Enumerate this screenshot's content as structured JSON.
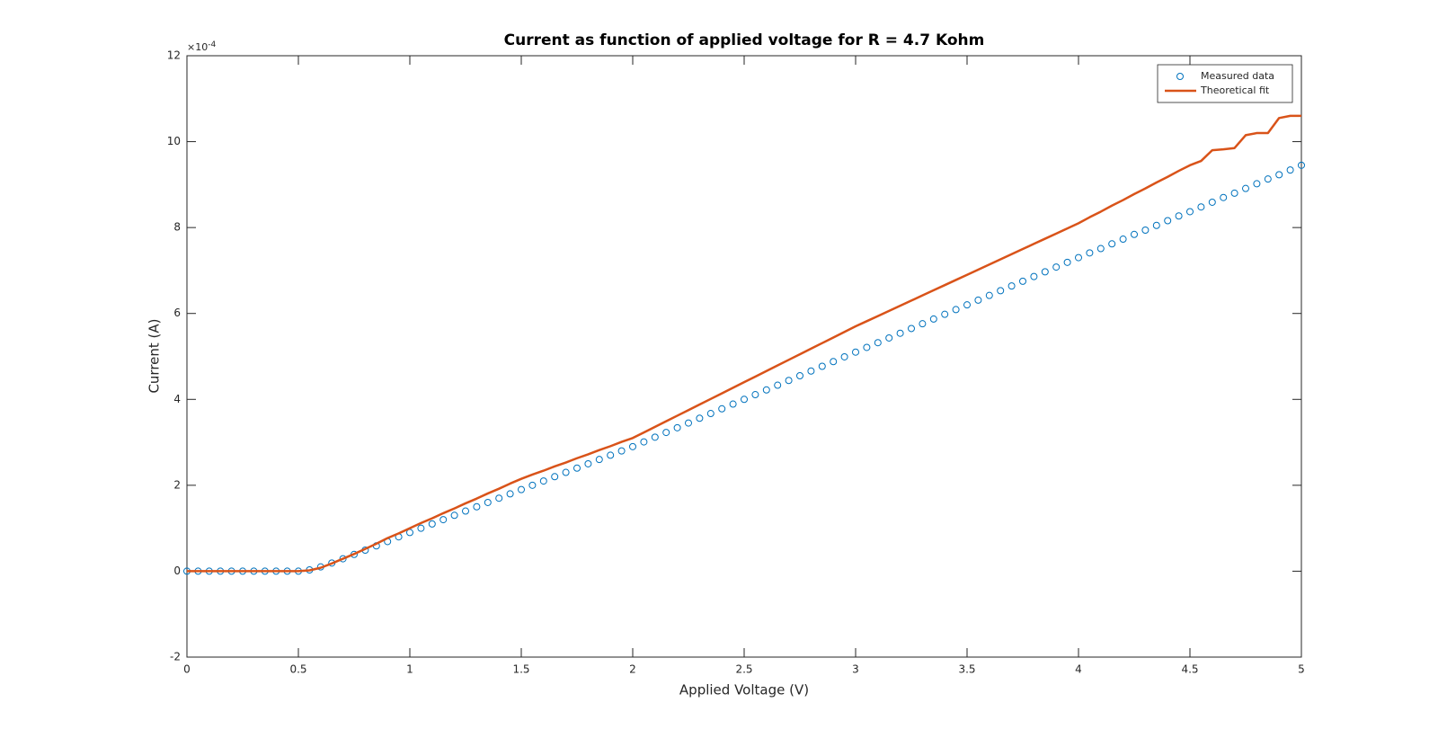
{
  "chart_data": {
    "type": "scatter-line",
    "title": "Current as function of applied voltage for R = 4.7 Kohm",
    "x_label": "Applied Voltage (V)",
    "y_label": "Current (A)",
    "y_exponent_base": "×10",
    "y_exponent": "-4",
    "x": [
      0,
      0.05,
      0.1,
      0.15,
      0.2,
      0.25,
      0.3,
      0.35,
      0.4,
      0.45,
      0.5,
      0.55,
      0.6,
      0.65,
      0.7,
      0.75,
      0.8,
      0.85,
      0.9,
      0.95,
      1,
      1.05,
      1.1,
      1.15,
      1.2,
      1.25,
      1.3,
      1.35,
      1.4,
      1.45,
      1.5,
      1.55,
      1.6,
      1.65,
      1.7,
      1.75,
      1.8,
      1.85,
      1.9,
      1.95,
      2,
      2.05,
      2.1,
      2.15,
      2.2,
      2.25,
      2.3,
      2.35,
      2.4,
      2.45,
      2.5,
      2.55,
      2.6,
      2.65,
      2.7,
      2.75,
      2.8,
      2.85,
      2.9,
      2.95,
      3,
      3.05,
      3.1,
      3.15,
      3.2,
      3.25,
      3.3,
      3.35,
      3.4,
      3.45,
      3.5,
      3.55,
      3.6,
      3.65,
      3.7,
      3.75,
      3.8,
      3.85,
      3.9,
      3.95,
      4,
      4.05,
      4.1,
      4.15,
      4.2,
      4.25,
      4.3,
      4.35,
      4.4,
      4.45,
      4.5,
      4.55,
      4.6,
      4.65,
      4.7,
      4.75,
      4.8,
      4.85,
      4.9,
      4.95,
      5
    ],
    "series": [
      {
        "name": "Measured data",
        "color": "#0072bd",
        "mode": "markers",
        "values": [
          0,
          0,
          0,
          0,
          0,
          0,
          0,
          0,
          0,
          0,
          0,
          0.03,
          0.1,
          0.19,
          0.29,
          0.39,
          0.49,
          0.59,
          0.69,
          0.8,
          0.9,
          1.0,
          1.1,
          1.2,
          1.3,
          1.4,
          1.5,
          1.6,
          1.7,
          1.8,
          1.9,
          2.0,
          2.1,
          2.2,
          2.3,
          2.4,
          2.5,
          2.6,
          2.7,
          2.8,
          2.9,
          3.01,
          3.12,
          3.23,
          3.34,
          3.45,
          3.56,
          3.67,
          3.78,
          3.89,
          4.0,
          4.11,
          4.22,
          4.33,
          4.44,
          4.55,
          4.66,
          4.77,
          4.88,
          4.99,
          5.1,
          5.21,
          5.32,
          5.43,
          5.54,
          5.65,
          5.76,
          5.87,
          5.98,
          6.09,
          6.2,
          6.31,
          6.42,
          6.53,
          6.64,
          6.75,
          6.86,
          6.97,
          7.08,
          7.19,
          7.3,
          7.41,
          7.51,
          7.62,
          7.73,
          7.84,
          7.94,
          8.05,
          8.16,
          8.27,
          8.37,
          8.48,
          8.59,
          8.7,
          8.8,
          8.91,
          9.02,
          9.13,
          9.23,
          9.34,
          9.45
        ]
      },
      {
        "name": "Theoretical fit",
        "color": "#d95319",
        "mode": "line",
        "values": [
          0,
          0,
          0,
          0,
          0,
          0,
          0,
          0,
          0,
          0,
          0,
          0.02,
          0.08,
          0.18,
          0.29,
          0.4,
          0.52,
          0.64,
          0.77,
          0.88,
          1.0,
          1.12,
          1.23,
          1.35,
          1.46,
          1.58,
          1.69,
          1.81,
          1.92,
          2.04,
          2.15,
          2.25,
          2.34,
          2.44,
          2.53,
          2.63,
          2.72,
          2.82,
          2.91,
          3.01,
          3.1,
          3.23,
          3.36,
          3.49,
          3.62,
          3.75,
          3.88,
          4.01,
          4.14,
          4.27,
          4.4,
          4.53,
          4.66,
          4.79,
          4.92,
          5.05,
          5.18,
          5.31,
          5.44,
          5.57,
          5.7,
          5.82,
          5.94,
          6.06,
          6.18,
          6.3,
          6.42,
          6.54,
          6.66,
          6.78,
          6.9,
          7.02,
          7.14,
          7.26,
          7.38,
          7.5,
          7.62,
          7.74,
          7.86,
          7.98,
          8.1,
          8.24,
          8.37,
          8.51,
          8.64,
          8.78,
          8.91,
          9.05,
          9.18,
          9.32,
          9.45,
          9.55,
          9.8,
          9.82,
          9.85,
          10.15,
          10.2,
          10.2,
          10.55,
          10.6,
          10.6
        ]
      }
    ],
    "xlim": [
      0,
      5
    ],
    "xticks": [
      0,
      0.5,
      1,
      1.5,
      2,
      2.5,
      3,
      3.5,
      4,
      4.5,
      5
    ],
    "ylim": [
      -2,
      12
    ],
    "yticks": [
      -2,
      0,
      2,
      4,
      6,
      8,
      10,
      12
    ],
    "grid": false,
    "legend": "northeast"
  }
}
